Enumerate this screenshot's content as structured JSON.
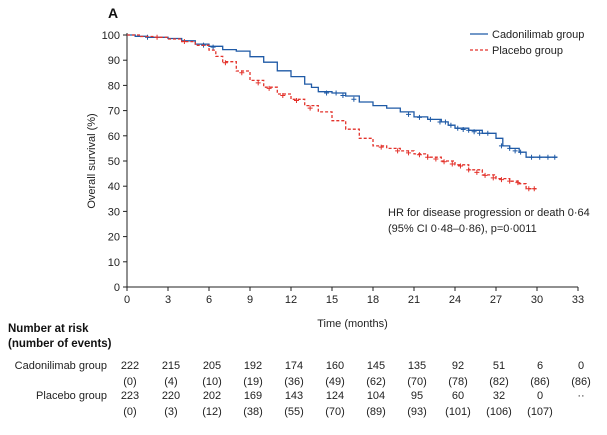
{
  "panel_label": "A",
  "chart_data": {
    "type": "line",
    "title": "",
    "xlabel": "Time (months)",
    "ylabel": "Overall survival (%)",
    "xlim": [
      0,
      33
    ],
    "ylim": [
      0,
      100
    ],
    "xticks": [
      0,
      3,
      6,
      9,
      12,
      15,
      18,
      21,
      24,
      27,
      30,
      33
    ],
    "yticks": [
      0,
      10,
      20,
      30,
      40,
      50,
      60,
      70,
      80,
      90,
      100
    ],
    "legend_position": "top-right",
    "series": [
      {
        "name": "Cadonilimab group",
        "color": "#1f5aa6",
        "style": "solid",
        "points": [
          [
            0,
            100
          ],
          [
            0.6,
            99.5
          ],
          [
            1.5,
            99.1
          ],
          [
            3,
            98.6
          ],
          [
            4,
            97.7
          ],
          [
            5,
            96.4
          ],
          [
            6,
            95.5
          ],
          [
            7,
            94.2
          ],
          [
            8,
            93.6
          ],
          [
            9,
            91.4
          ],
          [
            10,
            89.2
          ],
          [
            11,
            85.8
          ],
          [
            12,
            83.5
          ],
          [
            13,
            80.5
          ],
          [
            13.5,
            79.2
          ],
          [
            14,
            77.5
          ],
          [
            15,
            77.0
          ],
          [
            16,
            75.8
          ],
          [
            17,
            73.4
          ],
          [
            18,
            72.0
          ],
          [
            19,
            71.0
          ],
          [
            20,
            69.5
          ],
          [
            21,
            67.5
          ],
          [
            22,
            66.5
          ],
          [
            23,
            65.5
          ],
          [
            23.5,
            64.2
          ],
          [
            24,
            63.0
          ],
          [
            25,
            62.2
          ],
          [
            26,
            61.0
          ],
          [
            27,
            59.0
          ],
          [
            27.5,
            56.0
          ],
          [
            28,
            55.0
          ],
          [
            28.7,
            53.5
          ],
          [
            29.2,
            51.5
          ],
          [
            31.5,
            51.5
          ]
        ],
        "censor": [
          [
            1.5,
            99.1
          ],
          [
            5.6,
            96.0
          ],
          [
            6.3,
            95.2
          ],
          [
            14.6,
            77.0
          ],
          [
            15.3,
            77.0
          ],
          [
            15.8,
            76.0
          ],
          [
            16.6,
            74.5
          ],
          [
            20.6,
            68.5
          ],
          [
            21.4,
            67.3
          ],
          [
            22.2,
            66.5
          ],
          [
            22.9,
            65.5
          ],
          [
            23.3,
            65.5
          ],
          [
            23.7,
            64.2
          ],
          [
            24.2,
            63.0
          ],
          [
            24.6,
            62.5
          ],
          [
            25.0,
            62.2
          ],
          [
            25.4,
            61.6
          ],
          [
            25.8,
            61.0
          ],
          [
            26.4,
            61.0
          ],
          [
            27.4,
            56.0
          ],
          [
            28.0,
            55.0
          ],
          [
            28.4,
            54.0
          ],
          [
            28.8,
            53.5
          ],
          [
            29.6,
            51.5
          ],
          [
            30.2,
            51.5
          ],
          [
            30.8,
            51.5
          ],
          [
            31.3,
            51.5
          ]
        ]
      },
      {
        "name": "Placebo group",
        "color": "#e3322b",
        "style": "dashed",
        "points": [
          [
            0,
            100
          ],
          [
            1,
            99.4
          ],
          [
            2,
            99.1
          ],
          [
            3,
            98.4
          ],
          [
            4,
            97.4
          ],
          [
            5,
            95.9
          ],
          [
            6,
            94.0
          ],
          [
            6.5,
            91.5
          ],
          [
            7,
            89.4
          ],
          [
            8,
            85.7
          ],
          [
            9,
            82.0
          ],
          [
            10,
            79.3
          ],
          [
            11,
            76.6
          ],
          [
            12,
            74.5
          ],
          [
            13,
            72.0
          ],
          [
            14,
            69.5
          ],
          [
            15,
            66.0
          ],
          [
            16,
            62.6
          ],
          [
            17,
            59.0
          ],
          [
            18,
            56.0
          ],
          [
            19,
            55.0
          ],
          [
            20,
            54.0
          ],
          [
            21,
            52.8
          ],
          [
            22,
            51.5
          ],
          [
            23,
            50.0
          ],
          [
            24,
            48.5
          ],
          [
            25,
            46.5
          ],
          [
            26,
            44.5
          ],
          [
            27,
            43.0
          ],
          [
            28,
            42.0
          ],
          [
            28.7,
            41.0
          ],
          [
            29.2,
            39.0
          ],
          [
            30,
            39.0
          ]
        ],
        "censor": [
          [
            2.2,
            99.1
          ],
          [
            4.2,
            97.4
          ],
          [
            7.2,
            89.0
          ],
          [
            8.4,
            85.0
          ],
          [
            9.6,
            81.0
          ],
          [
            10.4,
            78.8
          ],
          [
            11.4,
            76.0
          ],
          [
            12.4,
            74.0
          ],
          [
            13.4,
            71.0
          ],
          [
            18.6,
            55.5
          ],
          [
            19.8,
            54.0
          ],
          [
            20.6,
            53.2
          ],
          [
            21.4,
            52.5
          ],
          [
            22.0,
            51.5
          ],
          [
            22.6,
            50.8
          ],
          [
            23.2,
            49.7
          ],
          [
            23.8,
            48.8
          ],
          [
            24.4,
            48.0
          ],
          [
            25.0,
            46.5
          ],
          [
            25.6,
            45.5
          ],
          [
            26.2,
            44.3
          ],
          [
            26.8,
            43.3
          ],
          [
            27.4,
            42.6
          ],
          [
            28.0,
            42.0
          ],
          [
            28.6,
            41.4
          ],
          [
            29.4,
            39.0
          ],
          [
            29.8,
            39.0
          ]
        ]
      }
    ],
    "annotation_lines": [
      "HR for disease progression or death 0·64",
      "(95% CI 0·48–0·86), p=0·0011"
    ]
  },
  "risk_table": {
    "heading_lines": [
      "Number at risk",
      "(number of events)"
    ],
    "time_points": [
      0,
      3,
      6,
      9,
      12,
      15,
      18,
      21,
      24,
      27,
      30,
      33
    ],
    "groups": [
      {
        "label": "Cadonilimab group",
        "at_risk": [
          "222",
          "215",
          "205",
          "192",
          "174",
          "160",
          "145",
          "135",
          "92",
          "51",
          "6",
          "0"
        ],
        "events": [
          "(0)",
          "(4)",
          "(10)",
          "(19)",
          "(36)",
          "(49)",
          "(62)",
          "(70)",
          "(78)",
          "(82)",
          "(86)",
          "(86)"
        ]
      },
      {
        "label": "Placebo group",
        "at_risk": [
          "223",
          "220",
          "202",
          "169",
          "143",
          "124",
          "104",
          "95",
          "60",
          "32",
          "0",
          "··"
        ],
        "events": [
          "(0)",
          "(3)",
          "(12)",
          "(38)",
          "(55)",
          "(70)",
          "(89)",
          "(93)",
          "(101)",
          "(106)",
          "(107)",
          ""
        ]
      }
    ]
  }
}
